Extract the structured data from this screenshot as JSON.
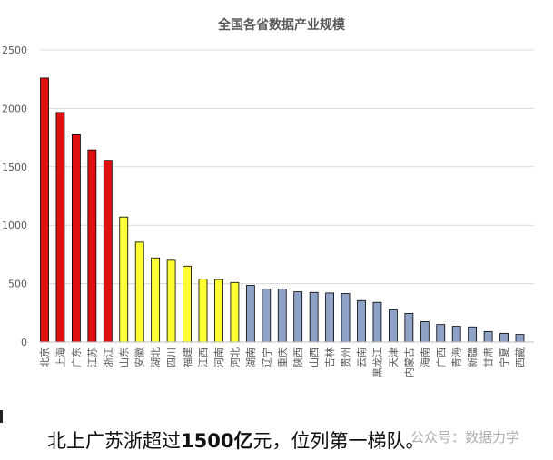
{
  "chart_data": {
    "type": "bar",
    "title": "全国各省数据产业规模",
    "xlabel": "",
    "ylabel": "",
    "ylim": [
      0,
      2500
    ],
    "yticks": [
      0,
      500,
      1000,
      1500,
      2000,
      2500
    ],
    "grid": true,
    "categories": [
      "北京",
      "上海",
      "广东",
      "江苏",
      "浙江",
      "山东",
      "安徽",
      "湖北",
      "四川",
      "福建",
      "江西",
      "河南",
      "河北",
      "湖南",
      "辽宁",
      "重庆",
      "陕西",
      "山西",
      "吉林",
      "贵州",
      "云南",
      "黑龙江",
      "天津",
      "内蒙古",
      "海南",
      "广西",
      "青海",
      "新疆",
      "甘肃",
      "宁夏",
      "西藏"
    ],
    "values": [
      2260,
      1965,
      1775,
      1645,
      1555,
      1070,
      855,
      720,
      700,
      650,
      540,
      535,
      510,
      485,
      455,
      455,
      430,
      425,
      420,
      415,
      355,
      340,
      275,
      245,
      175,
      150,
      135,
      130,
      90,
      75,
      65
    ],
    "colors": {
      "tier1": "#e01010",
      "tier2": "#ffff33",
      "tier3": "#8ea2c8",
      "outline": "#000000",
      "grid": "#d9d9d9",
      "text": "#595959"
    },
    "tier_counts": [
      5,
      8
    ]
  },
  "caption": {
    "before": "北上广苏浙超过",
    "bold": "1500亿",
    "after": "元，位列第一梯队。"
  },
  "watermark": {
    "text": "公众号：数据力学"
  }
}
